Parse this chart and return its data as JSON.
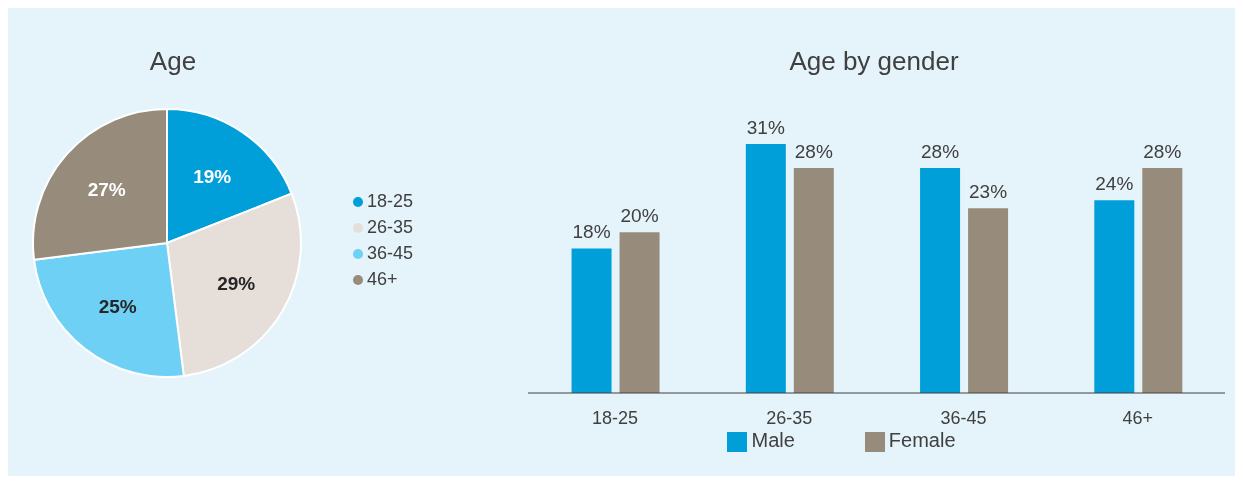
{
  "chart_data": [
    {
      "type": "pie",
      "title": "Age",
      "categories": [
        "18-25",
        "26-35",
        "36-45",
        "46+"
      ],
      "values": [
        19,
        29,
        25,
        27
      ],
      "value_labels": [
        "19%",
        "29%",
        "25%",
        "27%"
      ],
      "colors": [
        "#009fda",
        "#e5ded9",
        "#6dd0f4",
        "#978b7b"
      ],
      "legend": "right"
    },
    {
      "type": "bar",
      "title": "Age by gender",
      "categories": [
        "18-25",
        "26-35",
        "36-45",
        "46+"
      ],
      "series": [
        {
          "name": "Male",
          "color": "#009fda",
          "values": [
            18,
            31,
            28,
            24
          ],
          "value_labels": [
            "18%",
            "31%",
            "28%",
            "24%"
          ]
        },
        {
          "name": "Female",
          "color": "#978b7b",
          "values": [
            20,
            28,
            23,
            28
          ],
          "value_labels": [
            "20%",
            "28%",
            "23%",
            "28%"
          ]
        }
      ],
      "legend": "bottom"
    }
  ]
}
